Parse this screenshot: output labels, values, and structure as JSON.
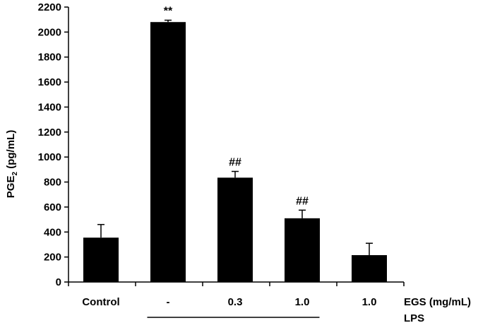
{
  "chart_data": {
    "type": "bar",
    "categories": [
      "Control",
      "-",
      "0.3",
      "1.0",
      "1.0"
    ],
    "values": [
      355,
      2080,
      835,
      510,
      215
    ],
    "errors": [
      105,
      15,
      50,
      65,
      95
    ],
    "annotations": [
      "",
      "**",
      "##",
      "##",
      ""
    ],
    "ylabel": {
      "prefix": "PGE",
      "subscript": "2",
      "suffix": " (pg/mL)"
    },
    "ylim": [
      0,
      2200
    ],
    "yticks": [
      0,
      200,
      400,
      600,
      800,
      1000,
      1200,
      1400,
      1600,
      1800,
      2000,
      2200
    ],
    "x_side_label": "EGS (mg/mL)",
    "group_label": "LPS",
    "group_span": [
      1,
      3
    ],
    "bar_color": "#000000",
    "grid": false,
    "legend": "none"
  }
}
